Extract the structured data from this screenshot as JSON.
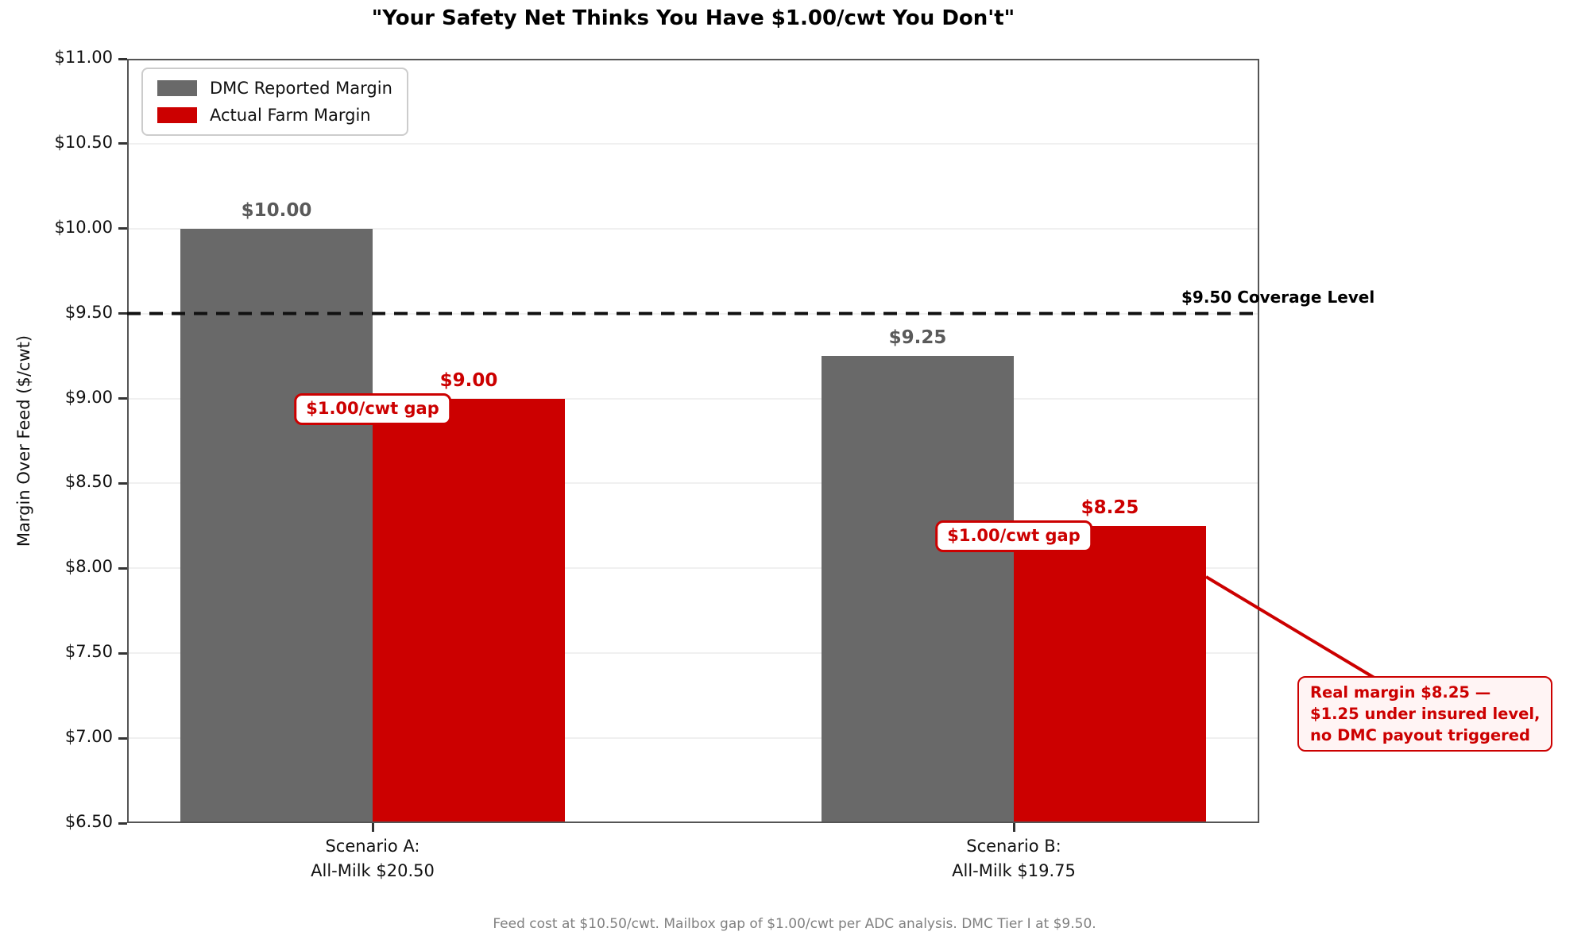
{
  "chart_data": {
    "type": "bar",
    "title": "\"Your Safety Net Thinks You Have $1.00/cwt You Don't\"",
    "ylabel": "Margin Over Feed ($/cwt)",
    "ylim": [
      6.5,
      11.0
    ],
    "ytick_step": 0.5,
    "ytick_format": "$0.00",
    "grid": true,
    "legend_position": "upper left",
    "categories": [
      "Scenario A:\nAll-Milk $20.50",
      "Scenario B:\nAll-Milk $19.75"
    ],
    "series": [
      {
        "name": "DMC Reported Margin",
        "color": "#696969",
        "label_color": "#5a5a5a",
        "values": [
          10.0,
          9.25
        ]
      },
      {
        "name": "Actual Farm Margin",
        "color": "#CC0000",
        "label_color": "#CC0000",
        "values": [
          9.0,
          8.25
        ]
      }
    ],
    "coverage_line": {
      "value": 9.5,
      "label": "$9.50 Coverage Level",
      "color": "#111111",
      "style": "dashed"
    },
    "gap_annotations": [
      {
        "group": 0,
        "label": "$1.00/cwt gap"
      },
      {
        "group": 1,
        "label": "$1.00/cwt gap"
      }
    ],
    "callout": {
      "lines": [
        "Real margin $8.25 —",
        "$1.25 under insured level,",
        "no DMC payout triggered"
      ],
      "anchor_group": 1,
      "anchor_value": 7.95
    },
    "footnote": "Feed cost at $10.50/cwt. Mailbox gap of $1.00/cwt per ADC analysis. DMC Tier I at $9.50."
  },
  "colors": {
    "accent_red": "#CC0000",
    "bar_gray": "#696969",
    "gridline": "#f0f0f0",
    "spine": "#555555",
    "footnote_gray": "#808080",
    "callout_background": "#fff4f4"
  }
}
